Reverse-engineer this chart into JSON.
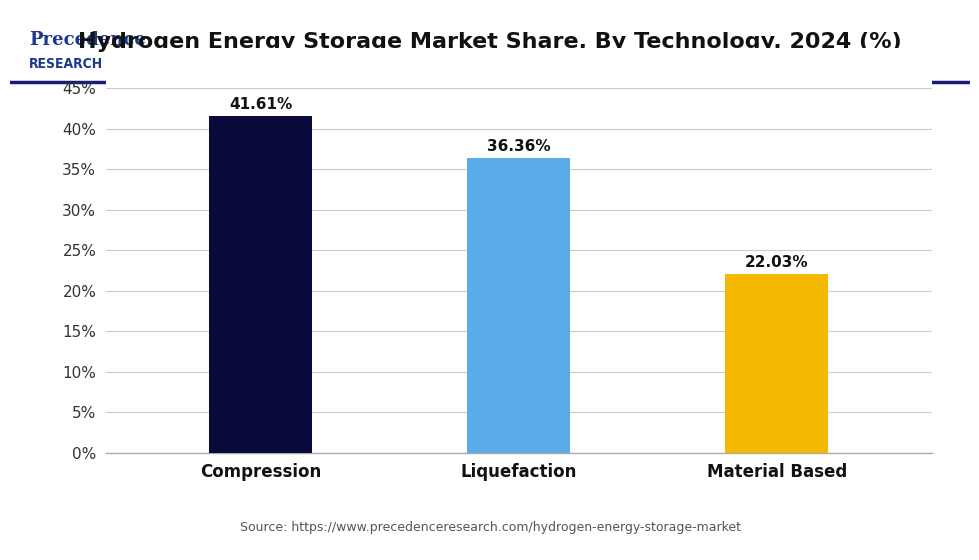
{
  "title": "Hydrogen Energy Storage Market Share, By Technology, 2024 (%)",
  "categories": [
    "Compression",
    "Liquefaction",
    "Material Based"
  ],
  "values": [
    41.61,
    36.36,
    22.03
  ],
  "labels": [
    "41.61%",
    "36.36%",
    "22.03%"
  ],
  "bar_colors": [
    "#0a0a3c",
    "#5aace8",
    "#f5b800"
  ],
  "ylim": [
    0,
    50
  ],
  "yticks": [
    0,
    5,
    10,
    15,
    20,
    25,
    30,
    35,
    40,
    45
  ],
  "yticklabels": [
    "0%",
    "5%",
    "10%",
    "15%",
    "20%",
    "25%",
    "30%",
    "35%",
    "40%",
    "45%"
  ],
  "source_text": "Source: https://www.precedenceresearch.com/hydrogen-energy-storage-market",
  "background_color": "#ffffff",
  "plot_bg_color": "#ffffff",
  "title_fontsize": 16,
  "label_fontsize": 11,
  "tick_fontsize": 11,
  "source_fontsize": 9,
  "bar_width": 0.4,
  "grid_color": "#cccccc",
  "header_line_color": "#1a1a7a",
  "logo_text_1": "Precedence",
  "logo_text_2": "RESEARCH"
}
